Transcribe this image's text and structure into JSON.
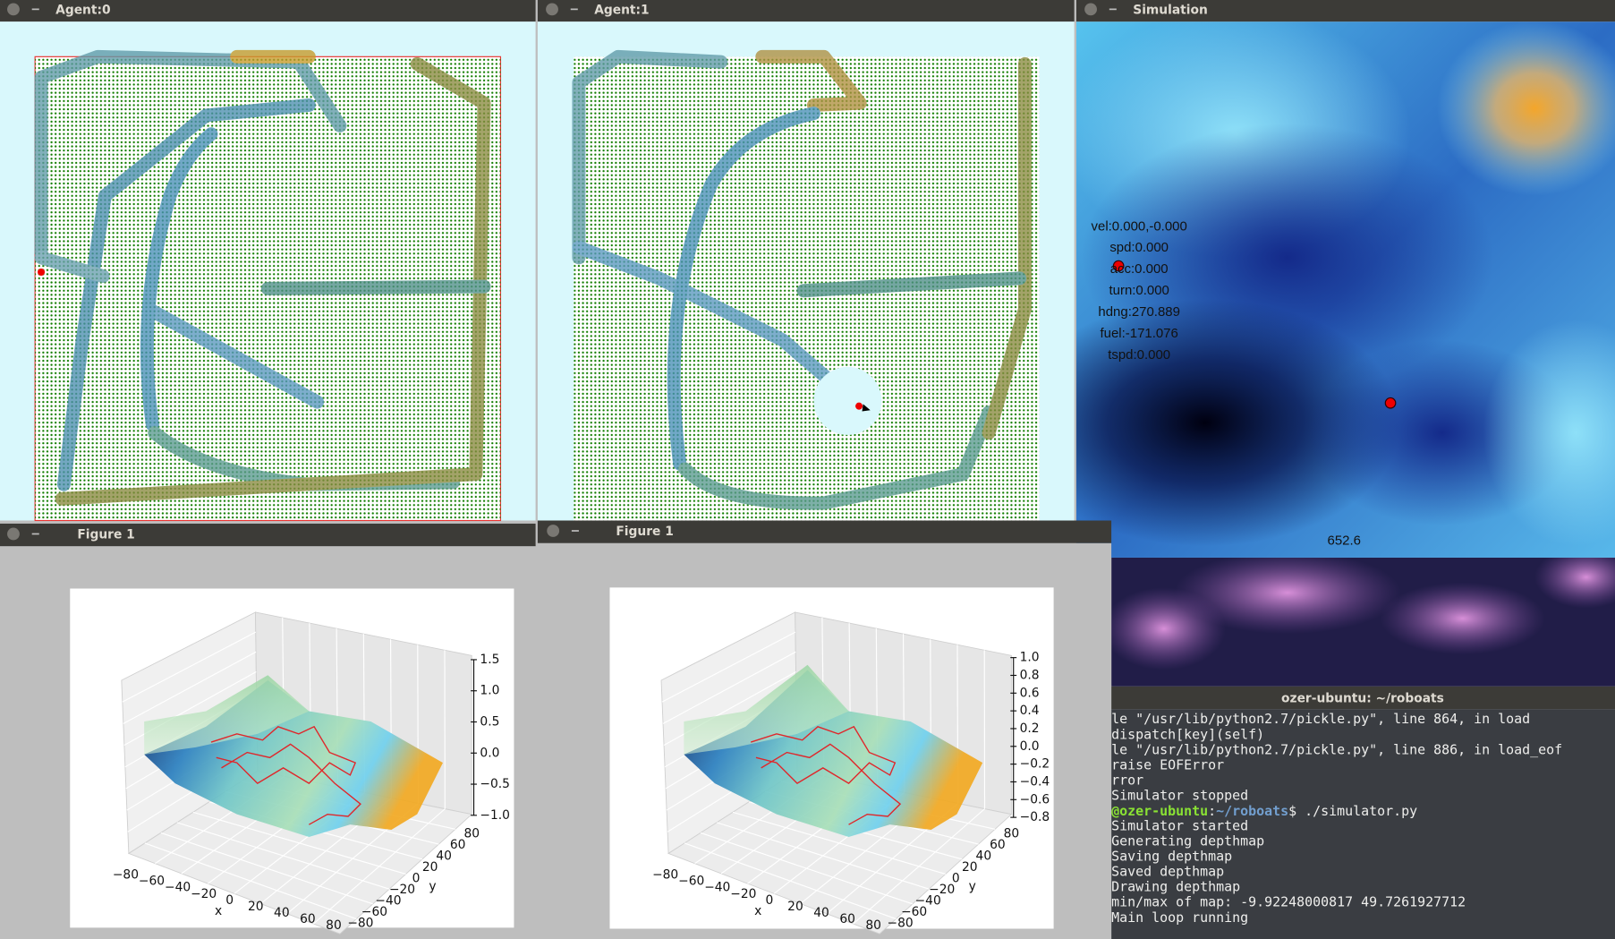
{
  "windows": {
    "agent0": {
      "title": "Agent:0"
    },
    "agent1": {
      "title": "Agent:1"
    },
    "simulation": {
      "title": "Simulation",
      "stats": [
        "vel:0.000,-0.000",
        "spd:0.000",
        "acc:0.000",
        "turn:0.000",
        "hdng:270.889",
        "fuel:-171.076",
        "tspd:0.000"
      ],
      "bottom_label": "652.6"
    },
    "figure_left": {
      "title": "Figure 1",
      "z_ticks": [
        "1.5",
        "1.0",
        "0.5",
        "0.0",
        "−0.5",
        "−1.0"
      ],
      "x_ticks": [
        "−80",
        "−60",
        "−40",
        "−20",
        "0",
        "20",
        "40",
        "60",
        "80"
      ],
      "y_ticks": [
        "−80",
        "−60",
        "−40",
        "−20",
        "0",
        "20",
        "40",
        "60",
        "80"
      ],
      "x_label": "x",
      "y_label": "y"
    },
    "figure_right": {
      "title": "Figure 1",
      "z_ticks": [
        "1.0",
        "0.8",
        "0.6",
        "0.4",
        "0.2",
        "0.0",
        "−0.2",
        "−0.4",
        "−0.6",
        "−0.8"
      ],
      "x_ticks": [
        "−80",
        "−60",
        "−40",
        "−20",
        "0",
        "20",
        "40",
        "60",
        "80"
      ],
      "y_ticks": [
        "−80",
        "−60",
        "−40",
        "−20",
        "0",
        "20",
        "40",
        "60",
        "80"
      ],
      "x_label": "x",
      "y_label": "y"
    },
    "terminal": {
      "title": "ozer-ubuntu: ~/roboats",
      "lines_before": [
        "le \"/usr/lib/python2.7/pickle.py\", line 864, in load",
        "dispatch[key](self)",
        "le \"/usr/lib/python2.7/pickle.py\", line 886, in load_eof",
        "raise EOFError",
        "rror",
        "Simulator stopped"
      ],
      "prompt": {
        "user_host": "@ozer-ubuntu",
        "separator": ":",
        "path": "~/roboats",
        "command": "$ ./simulator.py"
      },
      "lines_after": [
        "Simulator started",
        "Generating depthmap",
        "Saving depthmap",
        "Saved depthmap",
        "Drawing depthmap",
        "min/max of map: -9.92248000817 49.7261927712",
        "Main loop running"
      ]
    }
  }
}
